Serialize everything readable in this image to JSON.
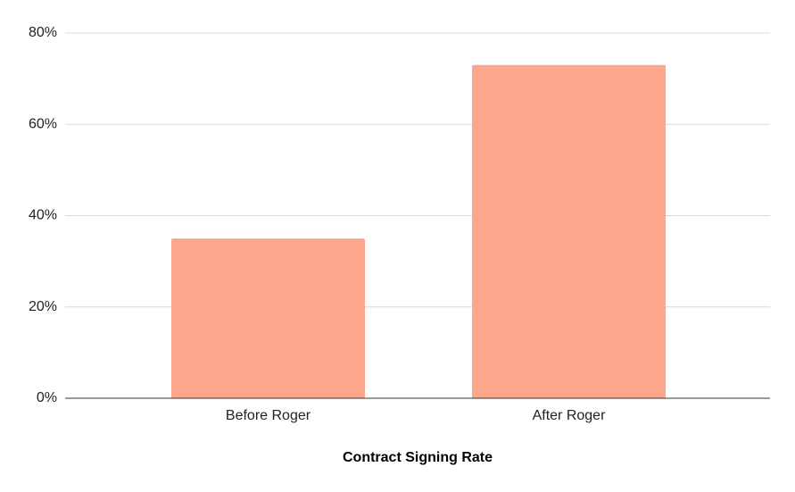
{
  "chart_data": {
    "type": "bar",
    "x_label": "Contract Signing Rate",
    "categories": [
      "Before Roger",
      "After Roger"
    ],
    "values": [
      35,
      73
    ],
    "color": "#fca68c",
    "ylim": [
      0,
      80
    ],
    "yticks": [
      {
        "value": 0,
        "label": "0%"
      },
      {
        "value": 20,
        "label": "20%"
      },
      {
        "value": 40,
        "label": "40%"
      },
      {
        "value": 60,
        "label": "60%"
      },
      {
        "value": 80,
        "label": "80%"
      }
    ],
    "grid": true
  }
}
